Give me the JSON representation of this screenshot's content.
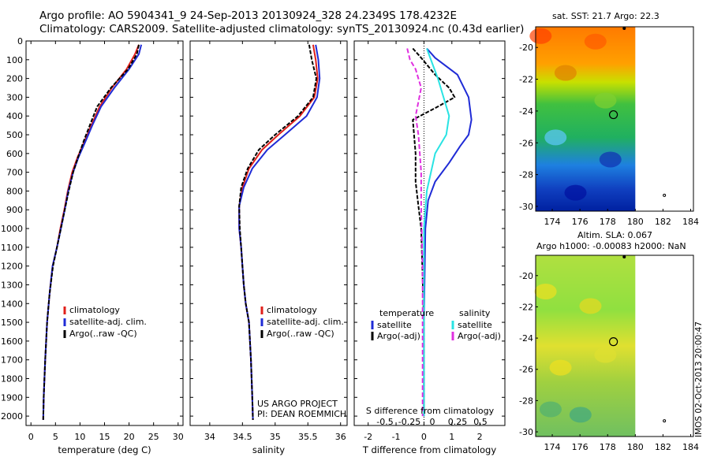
{
  "header": {
    "line1": "Argo profile: AO 5904341_9 24-Sep-2013 20130924_328 24.2349S 178.4232E",
    "line2": "Climatology: CARS2009. Satellite-adjusted climatology: synTS_20130924.nc (0.43d earlier)"
  },
  "side_stamp": "IMOS 02-Oct-2013 20:00:47",
  "colors": {
    "climatology": "#e0201b",
    "satellite": "#1f2bd6",
    "argo": "#000000",
    "cyan": "#29e3e3",
    "magenta": "#e030e0"
  },
  "chart_data": [
    {
      "type": "line",
      "xlabel": "temperature (deg C)",
      "ylabel": "",
      "xlim": [
        -1,
        31
      ],
      "ylim": [
        2050,
        0
      ],
      "xticks": [
        0,
        5,
        10,
        15,
        20,
        25,
        30
      ],
      "yticks": [
        0,
        100,
        200,
        300,
        400,
        500,
        600,
        700,
        800,
        900,
        1000,
        1100,
        1200,
        1300,
        1400,
        1500,
        1600,
        1700,
        1800,
        1900,
        2000
      ],
      "legend": [
        "climatology",
        "satellite-adj. clim.",
        "Argo(..raw -QC)"
      ],
      "series": [
        {
          "name": "climatology",
          "x": [
            22,
            21.2,
            19.5,
            16.5,
            14,
            12.3,
            11,
            9.5,
            8.4,
            7.5,
            6.8,
            6,
            5.3,
            4.4,
            3.8,
            3.3,
            2.9,
            2.6,
            2.5
          ],
          "y": [
            20,
            70,
            150,
            250,
            350,
            450,
            530,
            620,
            700,
            800,
            900,
            1000,
            1100,
            1200,
            1350,
            1500,
            1700,
            1900,
            2020
          ]
        },
        {
          "name": "satellite-adj. clim.",
          "x": [
            22.5,
            22,
            20,
            17,
            14.3,
            12.5,
            11.2,
            9.7,
            8.6,
            7.6,
            6.9,
            6.1,
            5.3,
            4.4,
            3.8,
            3.3,
            2.9,
            2.6,
            2.5
          ],
          "y": [
            20,
            70,
            150,
            250,
            350,
            450,
            530,
            620,
            700,
            800,
            900,
            1000,
            1100,
            1200,
            1350,
            1500,
            1700,
            1900,
            2020
          ]
        },
        {
          "name": "Argo(..raw -QC)",
          "x": [
            22,
            21.6,
            19.8,
            16.3,
            13.5,
            12,
            10.8,
            9.6,
            8.6,
            7.7,
            6.9,
            6.1,
            5.3,
            4.5,
            3.8,
            3.3,
            2.9,
            2.6,
            2.5
          ],
          "y": [
            20,
            70,
            150,
            250,
            350,
            450,
            530,
            620,
            700,
            800,
            900,
            1000,
            1100,
            1200,
            1350,
            1500,
            1700,
            1900,
            2020
          ]
        }
      ]
    },
    {
      "type": "line",
      "xlabel": "salinity",
      "ylabel": "",
      "xlim": [
        33.7,
        36.1
      ],
      "ylim": [
        2050,
        0
      ],
      "xticks": [
        34,
        34.5,
        35,
        35.5,
        36
      ],
      "xticklabels": [
        "34",
        "34.5",
        "35",
        "35.5",
        "36"
      ],
      "legend": [
        "climatology",
        "satellite-adj. clim.",
        "Argo(..raw -QC)"
      ],
      "annotation": [
        "US ARGO PROJECT",
        "PI: DEAN ROEMMICH"
      ],
      "series": [
        {
          "name": "climatology",
          "x": [
            35.58,
            35.62,
            35.65,
            35.6,
            35.38,
            35.05,
            34.8,
            34.6,
            34.5,
            34.45,
            34.45,
            34.48,
            34.5,
            34.52,
            34.55,
            34.6,
            34.63,
            34.65,
            34.66
          ],
          "y": [
            20,
            100,
            200,
            300,
            400,
            500,
            580,
            680,
            780,
            880,
            1000,
            1100,
            1200,
            1300,
            1400,
            1500,
            1700,
            1900,
            2020
          ]
        },
        {
          "name": "satellite-adj. clim.",
          "x": [
            35.62,
            35.66,
            35.68,
            35.64,
            35.48,
            35.15,
            34.88,
            34.65,
            34.52,
            34.45,
            34.45,
            34.48,
            34.5,
            34.52,
            34.55,
            34.6,
            34.63,
            34.65,
            34.66
          ],
          "y": [
            20,
            100,
            200,
            300,
            400,
            500,
            580,
            680,
            780,
            880,
            1000,
            1100,
            1200,
            1300,
            1400,
            1500,
            1700,
            1900,
            2020
          ]
        },
        {
          "name": "Argo(..raw -QC)",
          "x": [
            35.52,
            35.56,
            35.63,
            35.58,
            35.35,
            35.0,
            34.75,
            34.58,
            34.48,
            34.45,
            34.46,
            34.48,
            34.5,
            34.52,
            34.55,
            34.6,
            34.63,
            34.65,
            34.66
          ],
          "y": [
            20,
            100,
            200,
            300,
            400,
            500,
            580,
            680,
            780,
            880,
            1000,
            1100,
            1200,
            1300,
            1400,
            1500,
            1700,
            1900,
            2020
          ]
        }
      ]
    },
    {
      "type": "line",
      "title": "S difference from climatology",
      "xlabel": "T difference from climatology",
      "ylabel": "",
      "xlim": [
        -2.5,
        2.9
      ],
      "ylim": [
        2050,
        0
      ],
      "xticks": [
        -2,
        -1,
        0,
        1,
        2
      ],
      "xticklabels": [
        "-2",
        "-1",
        "0",
        "1",
        "2"
      ],
      "top_ticklabels": [
        "-0.5",
        "-0.25",
        "0",
        "0.25",
        "0.5"
      ],
      "legend_left_title": "temperature",
      "legend_right_title": "salinity",
      "legend": [
        "satellite",
        "Argo(-adj)",
        "satellite",
        "Argo(-adj)"
      ],
      "series": [
        {
          "name": "T satellite",
          "x": [
            0.1,
            0.4,
            1.2,
            1.6,
            1.7,
            1.6,
            1.3,
            0.9,
            0.4,
            0.15,
            0.05,
            0,
            0
          ],
          "y": [
            40,
            90,
            180,
            300,
            420,
            500,
            560,
            650,
            750,
            850,
            1000,
            1500,
            2000
          ]
        },
        {
          "name": "T Argo(-adj)",
          "x": [
            -0.4,
            -0.1,
            0.4,
            0.9,
            1.1,
            0.5,
            -0.4,
            -0.3,
            -0.3,
            -0.2,
            -0.1,
            0,
            0
          ],
          "y": [
            40,
            90,
            180,
            250,
            300,
            350,
            420,
            600,
            750,
            880,
            1000,
            1500,
            2000
          ]
        },
        {
          "name": "S satellite",
          "x": [
            0.1,
            0.3,
            0.5,
            0.7,
            0.9,
            0.8,
            0.4,
            0.1,
            0,
            0
          ],
          "y": [
            40,
            120,
            200,
            300,
            400,
            500,
            600,
            800,
            1000,
            2000
          ]
        },
        {
          "name": "S Argo(-adj)",
          "x": [
            -0.6,
            -0.5,
            -0.3,
            -0.1,
            -0.3,
            -0.2,
            -0.1,
            -0.1,
            -0.05,
            -0.05
          ],
          "y": [
            40,
            100,
            150,
            250,
            400,
            500,
            700,
            900,
            1200,
            2000
          ]
        }
      ]
    },
    {
      "type": "heatmap",
      "title": "sat. SST: 21.7 Argo: 22.3",
      "xlim": [
        172.8,
        184.2
      ],
      "ylim": [
        -30.3,
        -18.7
      ],
      "xticks": [
        174,
        176,
        178,
        180,
        182,
        184
      ],
      "yticks": [
        -20,
        -22,
        -24,
        -26,
        -28,
        -30
      ],
      "marker": {
        "lon": 178.42,
        "lat": -24.23
      }
    },
    {
      "type": "heatmap",
      "title": "Altim. SLA: 0.067",
      "subtitle": "Argo h1000: -0.00083 h2000: NaN",
      "xlim": [
        172.8,
        184.2
      ],
      "ylim": [
        -30.3,
        -18.7
      ],
      "xticks": [
        174,
        176,
        178,
        180,
        182,
        184
      ],
      "yticks": [
        -20,
        -22,
        -24,
        -26,
        -28,
        -30
      ],
      "marker": {
        "lon": 178.42,
        "lat": -24.23
      }
    }
  ]
}
